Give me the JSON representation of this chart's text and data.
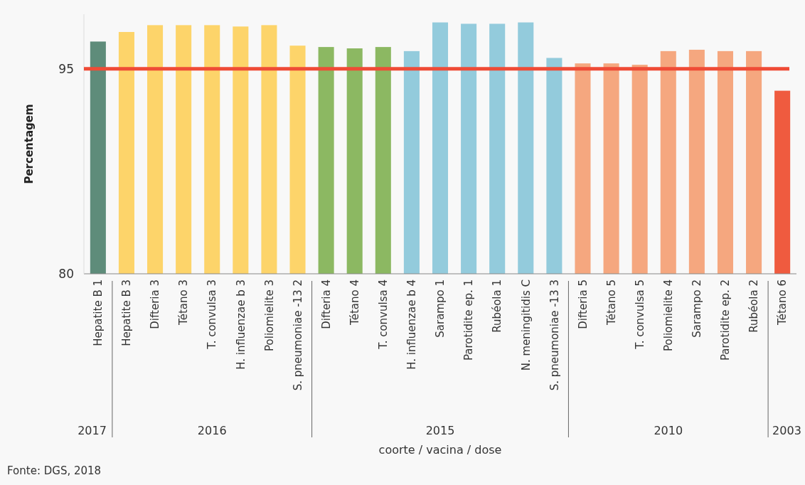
{
  "chart_data": {
    "type": "bar",
    "ylabel": "Percentagem",
    "xlabel": "coorte / vacina / dose",
    "categories": [
      "Hepatite B 1",
      "Hepatite B 3",
      "Difteria 3",
      "Tétano 3",
      "T. convulsa  3",
      "H. influenzae b 3",
      "Poliomielite 3",
      "S. pneumoniae -13 2",
      "Difteria 4",
      "Tétano 4",
      "T. convulsa 4",
      "H. influenzae b 4",
      "Sarampo 1",
      "Parotidite ep. 1",
      "Rubéola 1",
      "N. meningitidis C",
      "S. pneumoniae -13  3",
      "Difteria 5",
      "Tétano 5",
      "T. convulsa 5",
      "Poliomielite 4",
      "Sarampo 2",
      "Parotidite ep. 2",
      "Rubéola 2",
      "Tétano 6"
    ],
    "values": [
      97.0,
      97.7,
      98.2,
      98.2,
      98.2,
      98.1,
      98.2,
      96.7,
      96.6,
      96.5,
      96.6,
      96.3,
      98.4,
      98.3,
      98.3,
      98.4,
      95.8,
      95.4,
      95.4,
      95.3,
      96.3,
      96.4,
      96.3,
      96.3,
      93.4
    ],
    "colors": [
      "#5e8c7a",
      "#fdd46a",
      "#fdd46a",
      "#fdd46a",
      "#fdd46a",
      "#fdd46a",
      "#fdd46a",
      "#fdd46a",
      "#8cb862",
      "#8cb862",
      "#8cb862",
      "#93cbdc",
      "#93cbdc",
      "#93cbdc",
      "#93cbdc",
      "#93cbdc",
      "#93cbdc",
      "#f5a77f",
      "#f5a77f",
      "#f5a77f",
      "#f5a77f",
      "#f5a77f",
      "#f5a77f",
      "#f5a77f",
      "#ef5b3f"
    ],
    "ylim": [
      80,
      99
    ],
    "yticks": [
      80,
      95
    ],
    "ref_lines": [
      {
        "axis": "y",
        "value": 95,
        "label": null,
        "color": "#ef4b36"
      }
    ],
    "annotations": [
      "2017",
      "2016",
      "2015",
      "2010",
      "2003",
      "Fonte: DGS, 2018"
    ]
  }
}
